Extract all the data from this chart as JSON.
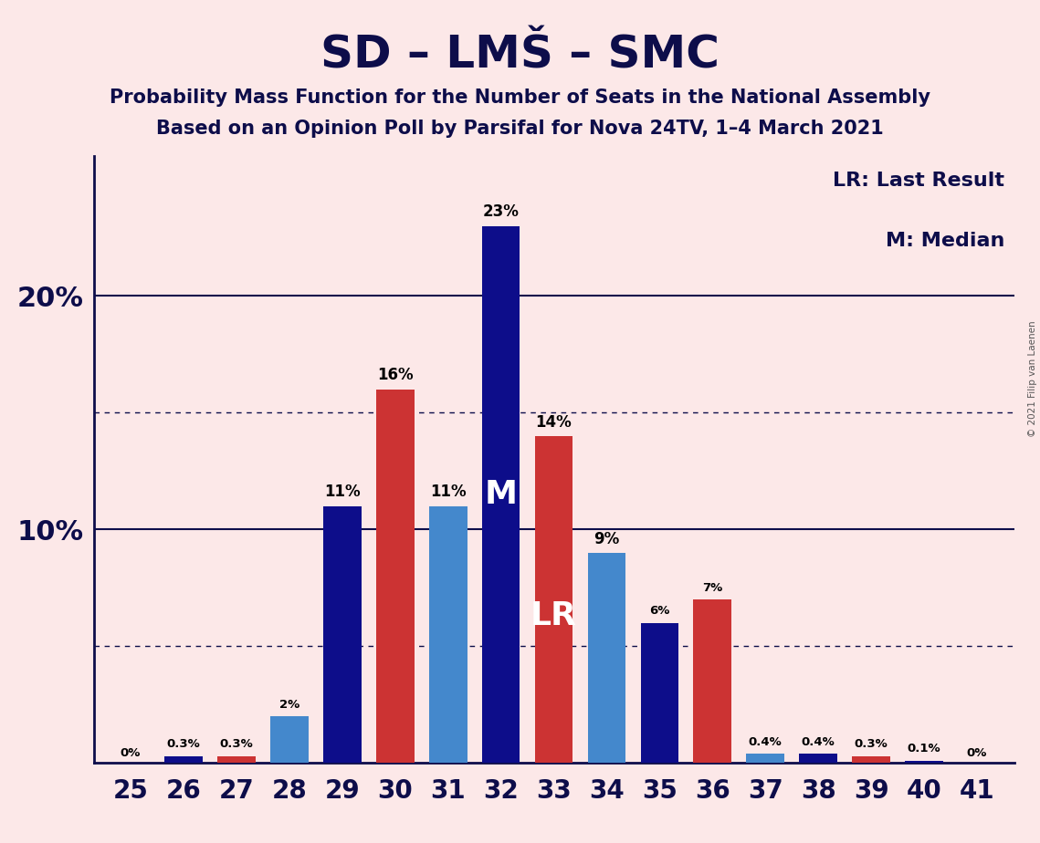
{
  "title": "SD – LMŠ – SMC",
  "subtitle1": "Probability Mass Function for the Number of Seats in the National Assembly",
  "subtitle2": "Based on an Opinion Poll by Parsifal for Nova 24TV, 1–4 March 2021",
  "copyright": "© 2021 Filip van Laenen",
  "seats": [
    25,
    26,
    27,
    28,
    29,
    30,
    31,
    32,
    33,
    34,
    35,
    36,
    37,
    38,
    39,
    40,
    41
  ],
  "values": [
    0.0,
    0.3,
    0.3,
    2.0,
    11.0,
    16.0,
    11.0,
    23.0,
    14.0,
    9.0,
    6.0,
    7.0,
    0.4,
    0.4,
    0.3,
    0.1,
    0.0
  ],
  "labels": [
    "0%",
    "0.3%",
    "0.3%",
    "2%",
    "11%",
    "16%",
    "11%",
    "23%",
    "14%",
    "9%",
    "6%",
    "7%",
    "0.4%",
    "0.4%",
    "0.3%",
    "0.1%",
    "0%"
  ],
  "colors": [
    "#0d0d8a",
    "#0d0d8a",
    "#cc3333",
    "#4488cc",
    "#0d0d8a",
    "#cc3333",
    "#4488cc",
    "#0d0d8a",
    "#cc3333",
    "#4488cc",
    "#0d0d8a",
    "#cc3333",
    "#4488cc",
    "#0d0d8a",
    "#cc3333",
    "#0d0d8a",
    "#0d0d8a"
  ],
  "median_seat": 32,
  "lr_seat": 33,
  "legend_lr": "LR: Last Result",
  "legend_m": "M: Median",
  "background_color": "#fce8e8",
  "major_yticks": [
    10,
    20
  ],
  "dotted_yticks": [
    5,
    15
  ],
  "ylim": [
    0,
    26
  ],
  "bar_width": 0.72,
  "label_fontsize_small": 9.5,
  "label_fontsize_large": 12,
  "ytick_fontsize": 22,
  "xtick_fontsize": 20,
  "title_fontsize": 36,
  "subtitle_fontsize": 15,
  "legend_fontsize": 16,
  "m_label_fontsize": 26,
  "lr_label_fontsize": 26
}
